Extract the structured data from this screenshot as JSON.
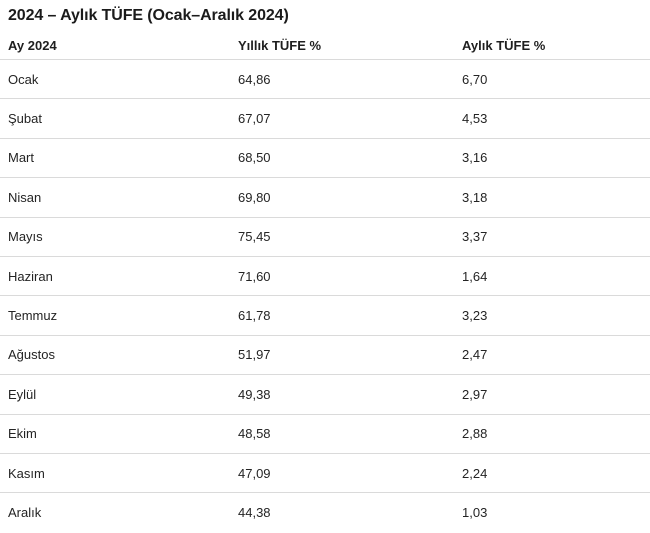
{
  "page": {
    "title": "2024 – Aylık TÜFE (Ocak–Aralık 2024)"
  },
  "table": {
    "columns": [
      "Ay 2024",
      "Yıllık TÜFE %",
      "Aylık TÜFE %"
    ],
    "rows": [
      [
        "Ocak",
        "64,86",
        "6,70"
      ],
      [
        "Şubat",
        "67,07",
        "4,53"
      ],
      [
        "Mart",
        "68,50",
        "3,16"
      ],
      [
        "Nisan",
        "69,80",
        "3,18"
      ],
      [
        "Mayıs",
        "75,45",
        "3,37"
      ],
      [
        "Haziran",
        "71,60",
        "1,64"
      ],
      [
        "Temmuz",
        "61,78",
        "3,23"
      ],
      [
        "Ağustos",
        "51,97",
        "2,47"
      ],
      [
        "Eylül",
        "49,38",
        "2,97"
      ],
      [
        "Ekim",
        "48,58",
        "2,88"
      ],
      [
        "Kasım",
        "47,09",
        "2,24"
      ],
      [
        "Aralık",
        "44,38",
        "1,03"
      ]
    ]
  },
  "colors": {
    "title_text": "#1b1b1b",
    "body_text": "#242424",
    "divider": "#dadada",
    "background": "#ffffff"
  },
  "chart_data": {
    "type": "table",
    "title": "2024 – Aylık TÜFE (Ocak–Aralık 2024)",
    "columns": [
      "Ay 2024",
      "Yıllık TÜFE %",
      "Aylık TÜFE %"
    ],
    "categories": [
      "Ocak",
      "Şubat",
      "Mart",
      "Nisan",
      "Mayıs",
      "Haziran",
      "Temmuz",
      "Ağustos",
      "Eylül",
      "Ekim",
      "Kasım",
      "Aralık"
    ],
    "series": [
      {
        "name": "Yıllık TÜFE %",
        "values": [
          64.86,
          67.07,
          68.5,
          69.8,
          75.45,
          71.6,
          61.78,
          51.97,
          49.38,
          48.58,
          47.09,
          44.38
        ]
      },
      {
        "name": "Aylık TÜFE %",
        "values": [
          6.7,
          4.53,
          3.16,
          3.18,
          3.37,
          1.64,
          3.23,
          2.47,
          2.97,
          2.88,
          2.24,
          1.03
        ]
      }
    ],
    "layout": {
      "grid": "horizontal-row-dividers",
      "legend": "none",
      "decimal_separator": "comma"
    }
  }
}
